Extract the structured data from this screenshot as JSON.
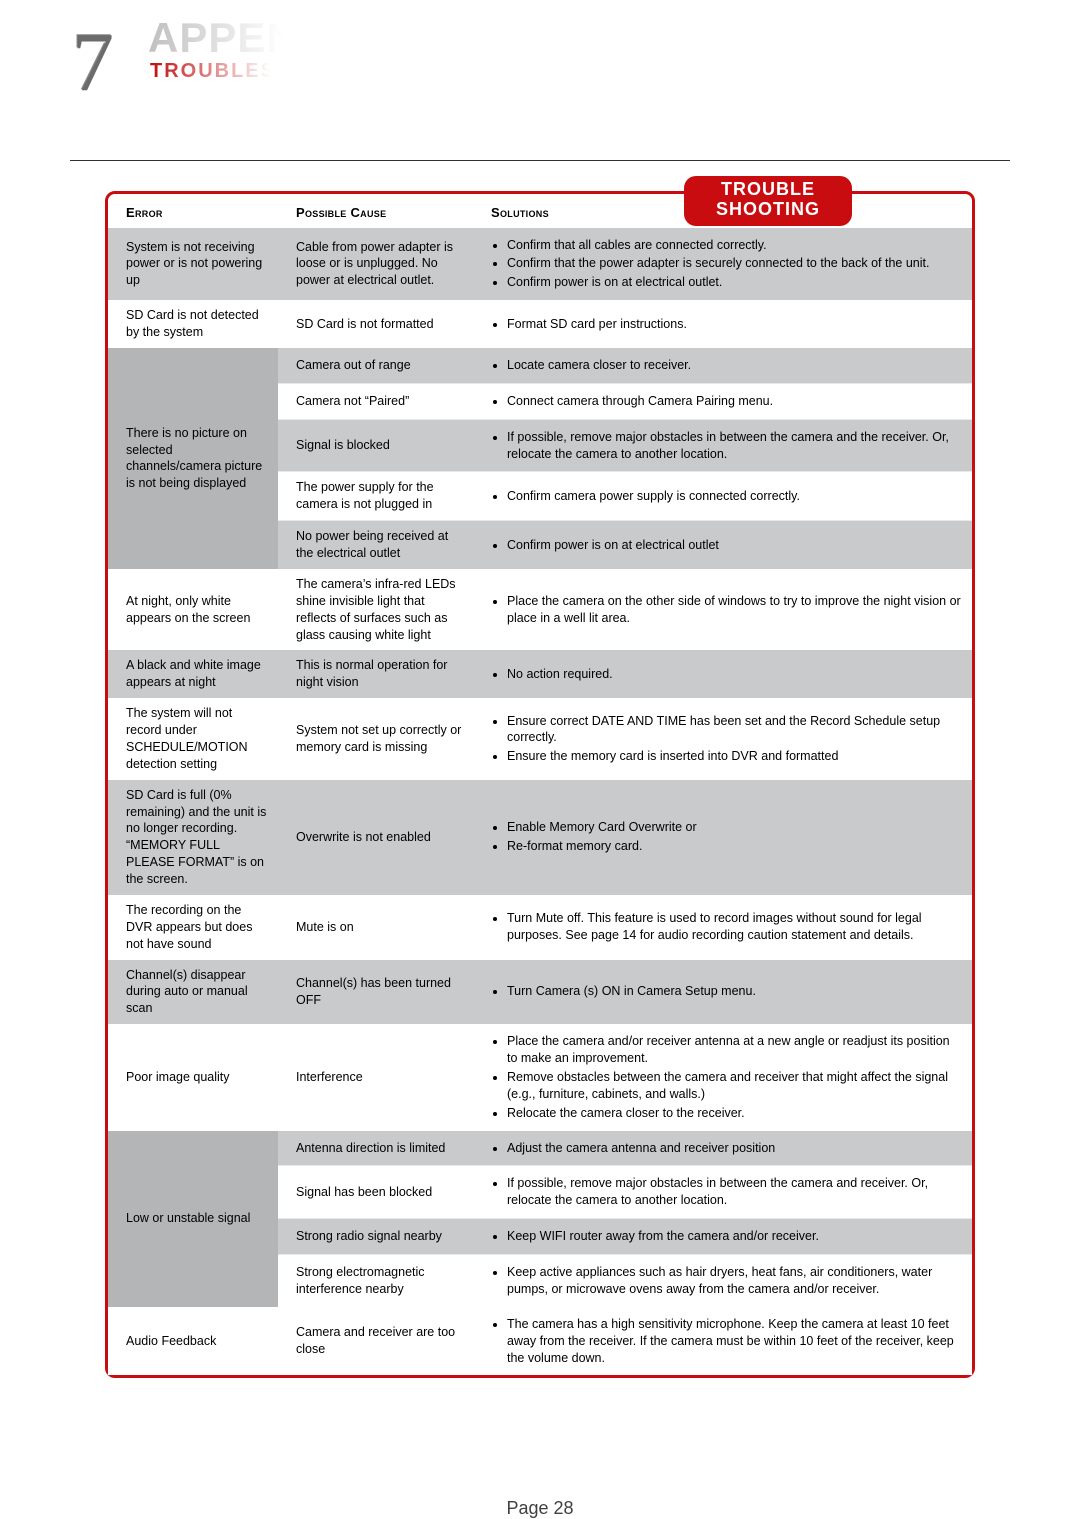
{
  "header": {
    "chapter_number": "7",
    "title_faded": "APPEN",
    "subtitle_faded": "TROUBLESH"
  },
  "badge": {
    "line1": "TROUBLE",
    "line2": "SHOOTING"
  },
  "columns": {
    "error": "Error",
    "cause": "Possible Cause",
    "solutions": "Solutions"
  },
  "rows": [
    {
      "error": "System is not receiving power or is not powering up",
      "error_shade": "b",
      "subs": [
        {
          "shade": "b",
          "cause": "Cable from power adapter is loose or is unplugged. No power at electrical outlet.",
          "solutions": [
            "Confirm that all cables are connected correctly.",
            "Confirm that the power adapter is securely connected to the back of the unit.",
            "Confirm power is on at electrical outlet."
          ]
        }
      ]
    },
    {
      "error": "SD Card is not detected by the system",
      "error_shade": "w",
      "subs": [
        {
          "shade": "w",
          "cause": "SD Card is not formatted",
          "solutions": [
            "Format SD card per instructions."
          ]
        }
      ]
    },
    {
      "error": "There is no picture on selected channels/camera picture is not being displayed",
      "error_shade": "a",
      "subs": [
        {
          "shade": "b",
          "cause": "Camera out of range",
          "solutions": [
            "Locate camera closer to receiver."
          ]
        },
        {
          "shade": "w",
          "cause": "Camera not “Paired”",
          "solutions": [
            "Connect camera through Camera Pairing menu."
          ]
        },
        {
          "shade": "b",
          "cause": "Signal is blocked",
          "solutions": [
            "If possible, remove major obstacles in between the camera and the receiver. Or, relocate the camera to another location."
          ]
        },
        {
          "shade": "w",
          "cause": "The power supply for the camera is not plugged in",
          "solutions": [
            "Confirm camera power supply is connected correctly."
          ]
        },
        {
          "shade": "b",
          "cause": "No power being received at the electrical outlet",
          "solutions": [
            "Confirm power is on at electrical outlet"
          ]
        }
      ]
    },
    {
      "error": "At night, only white appears on the screen",
      "error_shade": "w",
      "subs": [
        {
          "shade": "w",
          "cause": "The camera’s infra-red LEDs shine invisible light that reflects of surfaces such as glass causing white light",
          "solutions": [
            "Place the camera on the other side of windows to try to improve the night vision or place in a well lit area."
          ]
        }
      ]
    },
    {
      "error": "A black and white image appears at night",
      "error_shade": "b",
      "subs": [
        {
          "shade": "b",
          "cause": "This is normal operation for night vision",
          "solutions": [
            "No action required."
          ]
        }
      ]
    },
    {
      "error": "The system will not record under SCHEDULE/MOTION detection setting",
      "error_shade": "w",
      "subs": [
        {
          "shade": "w",
          "cause": "System not set up correctly or memory card is missing",
          "solutions": [
            "Ensure correct DATE AND TIME has been set and the Record Schedule setup correctly.",
            "Ensure the memory card is inserted into DVR and formatted"
          ]
        }
      ]
    },
    {
      "error": "SD Card is full (0% remaining) and the unit is no longer recording. “MEMORY FULL PLEASE FORMAT” is on the screen.",
      "error_shade": "b",
      "subs": [
        {
          "shade": "b",
          "cause": "Overwrite is not enabled",
          "solutions": [
            "Enable Memory Card Overwrite or",
            "Re-format memory card."
          ]
        }
      ]
    },
    {
      "error": "The recording on the DVR appears but does not have sound",
      "error_shade": "w",
      "subs": [
        {
          "shade": "w",
          "cause": "Mute is on",
          "solutions": [
            "Turn Mute off. This feature is used to record images without sound for legal purposes. See page 14 for audio recording caution statement and details."
          ]
        }
      ]
    },
    {
      "error": "Channel(s) disappear during auto or manual scan",
      "error_shade": "b",
      "subs": [
        {
          "shade": "b",
          "cause": "Channel(s) has been turned OFF",
          "solutions": [
            "Turn Camera (s) ON in Camera Setup menu."
          ]
        }
      ]
    },
    {
      "error": "Poor image quality",
      "error_shade": "w",
      "subs": [
        {
          "shade": "w",
          "cause": "Interference",
          "solutions": [
            "Place the camera and/or receiver antenna at a new angle or readjust its position to make an improvement.",
            "Remove obstacles between the camera and receiver that might affect the signal (e.g., furniture, cabinets, and walls.)",
            "Relocate the camera closer to the receiver."
          ]
        }
      ]
    },
    {
      "error": "Low or unstable signal",
      "error_shade": "a",
      "subs": [
        {
          "shade": "b",
          "cause": "Antenna direction is limited",
          "solutions": [
            "Adjust the camera antenna and receiver position"
          ]
        },
        {
          "shade": "w",
          "cause": "Signal has been blocked",
          "solutions": [
            "If possible, remove major obstacles in between the camera and receiver. Or, relocate the camera to another location."
          ]
        },
        {
          "shade": "b",
          "cause": "Strong radio signal nearby",
          "solutions": [
            "Keep WIFI router away from the camera and/or receiver."
          ]
        },
        {
          "shade": "w",
          "cause": "Strong electromagnetic interference nearby",
          "solutions": [
            "Keep active appliances such as hair dryers, heat fans, air conditioners, water pumps, or microwave ovens away from the camera and/or receiver."
          ]
        }
      ]
    },
    {
      "error": "Audio Feedback",
      "error_shade": "w",
      "subs": [
        {
          "shade": "w",
          "cause": "Camera and receiver are too close",
          "solutions": [
            "The camera has a high sensitivity microphone. Keep the camera at least 10 feet away from the receiver. If the camera must be within 10 feet of the receiver, keep the volume down."
          ]
        }
      ]
    }
  ],
  "page_label": "Page 28"
}
